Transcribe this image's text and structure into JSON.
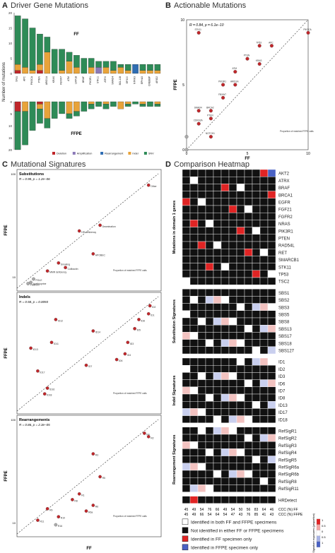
{
  "panels": {
    "A": {
      "letter": "A",
      "title": "Driver Gene Mutations"
    },
    "B": {
      "letter": "B",
      "title": "Actionable Mutations"
    },
    "C": {
      "letter": "C",
      "title": "Mutational Signatures"
    },
    "D": {
      "letter": "D",
      "title": "Comparison Heatmap"
    }
  },
  "chart_data": [
    {
      "id": "A",
      "type": "bar",
      "ylabel": "Number of mutations",
      "facets": [
        "FF",
        "FFPE"
      ],
      "categories": [
        "TP53",
        "APC",
        "PIK3CA",
        "PTEN",
        "ARID1A",
        "KRAS",
        "FBXW7",
        "ATM",
        "LRP1B",
        "BRAF",
        "PIK3R1",
        "STK11",
        "ATRX",
        "SMAD4",
        "BCL11B",
        "EP300",
        "NTRK3",
        "EPHA3",
        "CREBBP",
        "ARID2"
      ],
      "ylim_ff": [
        0,
        20
      ],
      "ylim_ffpe": [
        0,
        20
      ],
      "ff_ticks": [
        0,
        5,
        10,
        15,
        20
      ],
      "ffpe_ticks": [
        0,
        5,
        10,
        15,
        20
      ],
      "series_names": [
        "Deletion",
        "Amplification",
        "Rearrangement",
        "Indel",
        "SNV"
      ],
      "colors": {
        "Deletion": "#c0262a",
        "Amplification": "#8c7ab8",
        "Rearrangement": "#2f6db3",
        "Indel": "#e8a33a",
        "SNV": "#2e8b57"
      },
      "ff": [
        [
          1,
          0,
          0,
          2,
          16
        ],
        [
          0,
          0,
          0,
          2,
          16
        ],
        [
          0,
          0,
          0,
          1,
          14
        ],
        [
          1,
          0,
          0,
          2,
          10
        ],
        [
          0,
          0,
          0,
          7,
          5
        ],
        [
          0,
          0,
          0,
          0,
          8
        ],
        [
          0,
          0,
          0,
          1,
          7
        ],
        [
          0,
          0,
          0,
          4,
          3
        ],
        [
          0,
          0,
          0,
          2,
          4
        ],
        [
          0,
          0,
          0,
          0,
          5
        ],
        [
          0,
          0,
          0,
          2,
          3
        ],
        [
          0,
          2,
          0,
          0,
          2
        ],
        [
          0,
          0,
          0,
          2,
          2
        ],
        [
          0,
          0,
          0,
          1,
          3
        ],
        [
          0,
          0,
          0,
          2,
          1
        ],
        [
          0,
          0,
          0,
          1,
          2
        ],
        [
          0,
          0,
          3,
          0,
          0
        ],
        [
          0,
          0,
          0,
          1,
          2
        ],
        [
          0,
          0,
          0,
          1,
          2
        ],
        [
          0,
          0,
          0,
          1,
          2
        ]
      ],
      "ffpe": [
        [
          4,
          0,
          0,
          0,
          16
        ],
        [
          0,
          0,
          0,
          4,
          14
        ],
        [
          0,
          0,
          0,
          0,
          12
        ],
        [
          1,
          0,
          0,
          2,
          6
        ],
        [
          0,
          0,
          0,
          7,
          4
        ],
        [
          0,
          0,
          0,
          0,
          7
        ],
        [
          0,
          0,
          0,
          0,
          5
        ],
        [
          0,
          0,
          0,
          5,
          2
        ],
        [
          0,
          0,
          0,
          4,
          2
        ],
        [
          0,
          0,
          0,
          0,
          4
        ],
        [
          0,
          0,
          0,
          1,
          2
        ],
        [
          0,
          0,
          0,
          0,
          2
        ],
        [
          0,
          0,
          0,
          1,
          2
        ],
        [
          0,
          0,
          0,
          0,
          2
        ],
        [
          0,
          0,
          0,
          3,
          0
        ],
        [
          0,
          0,
          0,
          1,
          1
        ],
        [
          0,
          0,
          0,
          0,
          1
        ],
        [
          0,
          0,
          0,
          1,
          1
        ],
        [
          0,
          0,
          0,
          0,
          2
        ],
        [
          0,
          0,
          0,
          1,
          1
        ]
      ]
    },
    {
      "id": "B",
      "type": "scatter",
      "xlabel": "FF",
      "ylabel": "FFPE",
      "xlim": [
        0,
        10
      ],
      "ylim": [
        0,
        10
      ],
      "xticks": [
        0,
        5,
        10
      ],
      "yticks": [
        0,
        5,
        10
      ],
      "annotation": "R = 0.84, p = 6.1e−10",
      "legend_title": "Proportion of matched FFPE calls",
      "points": [
        {
          "x": 10,
          "y": 9,
          "label": "PIK3CA"
        },
        {
          "x": 7,
          "y": 8,
          "label": "APC"
        },
        {
          "x": 6,
          "y": 8,
          "label": "TP53"
        },
        {
          "x": 5,
          "y": 7,
          "label": "PTEN"
        },
        {
          "x": 6,
          "y": 6.6,
          "label": "KRAS"
        },
        {
          "x": 4,
          "y": 6,
          "label": "ATM"
        },
        {
          "x": 4,
          "y": 5,
          "label": "ARID1A"
        },
        {
          "x": 3,
          "y": 5,
          "label": "PIK3R1"
        },
        {
          "x": 3,
          "y": 4,
          "label": "FBXW7"
        },
        {
          "x": 2,
          "y": 3,
          "label": "BRCA2"
        },
        {
          "x": 2,
          "y": 2.4,
          "label": "PTEN"
        },
        {
          "x": 1,
          "y": 3,
          "label": "SMAD4"
        },
        {
          "x": 1,
          "y": 2,
          "label": "CDKN2A"
        },
        {
          "x": 2,
          "y": 1,
          "label": "NOTCH1"
        },
        {
          "x": 1,
          "y": 9,
          "label": "STK11"
        },
        {
          "x": 0,
          "y": 1,
          "label": ""
        },
        {
          "x": 0,
          "y": 0,
          "label": ""
        }
      ]
    },
    {
      "id": "C",
      "type": "scatter",
      "xlabel": "FF",
      "subpanels": [
        {
          "name": "Substitutions",
          "ylabel": "FFPE",
          "annotation": "R = 0.98, p = 1.2e−06",
          "ticks": [
            10,
            100
          ],
          "points": [
            {
              "x": 95,
              "y": 90,
              "label": "Other"
            },
            {
              "x": 60,
              "y": 55,
              "label": "Deamination"
            },
            {
              "x": 45,
              "y": 50,
              "label": "HR deficiency"
            },
            {
              "x": 55,
              "y": 30,
              "label": "APOBEC"
            },
            {
              "x": 30,
              "y": 22,
              "label": "Smoking"
            },
            {
              "x": 35,
              "y": 18,
              "label": "Colibactin"
            },
            {
              "x": 22,
              "y": 15,
              "label": "MMR deficiency"
            },
            {
              "x": 12,
              "y": 8,
              "label": "POLE"
            },
            {
              "x": 10,
              "y": 5,
              "label": "Azathioprine"
            },
            {
              "x": 8,
              "y": 4,
              "label": "Platinum"
            }
          ]
        },
        {
          "name": "Indels",
          "ylabel": "FFPE",
          "annotation": "R = 0.58, p = 0.0093",
          "ticks": [],
          "points": [
            {
              "x": 96,
              "y": 92,
              "label": "ID2"
            },
            {
              "x": 95,
              "y": 85,
              "label": "ID1"
            },
            {
              "x": 88,
              "y": 80,
              "label": "ID8"
            },
            {
              "x": 85,
              "y": 72,
              "label": "ID5"
            },
            {
              "x": 80,
              "y": 60,
              "label": "ID3"
            },
            {
              "x": 78,
              "y": 50,
              "label": "ID4"
            },
            {
              "x": 72,
              "y": 45,
              "label": "ID6"
            },
            {
              "x": 50,
              "y": 40,
              "label": "ID7"
            },
            {
              "x": 55,
              "y": 70,
              "label": "ID14"
            },
            {
              "x": 28,
              "y": 80,
              "label": "ID12"
            },
            {
              "x": 25,
              "y": 60,
              "label": "ID11"
            },
            {
              "x": 10,
              "y": 55,
              "label": "ID13"
            },
            {
              "x": 15,
              "y": 35,
              "label": "ID17"
            },
            {
              "x": 20,
              "y": 15,
              "label": "ID18"
            },
            {
              "x": 22,
              "y": 20,
              "label": "ID16"
            }
          ]
        },
        {
          "name": "Rearrangements",
          "ylabel": "FFPE",
          "annotation": "R = 0.86, p = 2.3e−05",
          "ticks": [
            10,
            100
          ],
          "points": [
            {
              "x": 92,
              "y": 88,
              "label": "R4"
            },
            {
              "x": 95,
              "y": 85,
              "label": "R2"
            },
            {
              "x": 55,
              "y": 70,
              "label": "R3"
            },
            {
              "x": 60,
              "y": 50,
              "label": "R5"
            },
            {
              "x": 45,
              "y": 35,
              "label": "R1"
            },
            {
              "x": 55,
              "y": 25,
              "label": "R6"
            },
            {
              "x": 40,
              "y": 30,
              "label": "R8"
            },
            {
              "x": 50,
              "y": 20,
              "label": "R6a"
            },
            {
              "x": 30,
              "y": 15,
              "label": "R10"
            },
            {
              "x": 22,
              "y": 22,
              "label": "R9"
            },
            {
              "x": 15,
              "y": 12,
              "label": "R11"
            },
            {
              "x": 28,
              "y": 8,
              "label": "R16"
            }
          ]
        }
      ],
      "legend_title": "Proportion of matched FFPE calls"
    },
    {
      "id": "D",
      "type": "heatmap",
      "row_groups": [
        {
          "title": "Mutations in domain 1 genes",
          "rows": [
            "AKT2",
            "ATRX",
            "BRAF",
            "BRCA1",
            "EGFR",
            "FGF21",
            "FGFR2",
            "NRAS",
            "PIK3R1",
            "PTEN",
            "RAD54L",
            "RET",
            "SMARCB1",
            "STK11",
            "TP53",
            "TSC2"
          ]
        },
        {
          "title": "Substitution Signatures",
          "rows": [
            "SBS1",
            "SBS2",
            "SBS3",
            "SBS5",
            "SBS8",
            "SBS13",
            "SBS17",
            "SBS18",
            "SBS127"
          ]
        },
        {
          "title": "Indel Signatures",
          "rows": [
            "ID1",
            "ID2",
            "ID3",
            "ID6",
            "ID7",
            "ID8",
            "ID13",
            "ID17",
            "ID18"
          ]
        },
        {
          "title": "Rearrangement Signatures",
          "rows": [
            "RefSigR1",
            "RefSigR2",
            "RefSigR3",
            "RefSigR4",
            "RefSigR5",
            "RefSigR6a",
            "RefSigR6b",
            "RefSigR8",
            "RefSigR11"
          ]
        },
        {
          "title": "",
          "rows": [
            "HRDetect"
          ]
        }
      ],
      "columns": 12,
      "ccc_ff": [
        "45",
        "49",
        "54",
        "76",
        "66",
        "49",
        "54",
        "50",
        "56",
        "83",
        "64",
        "46"
      ],
      "ccc_ffpe": [
        "45",
        "49",
        "66",
        "54",
        "64",
        "54",
        "47",
        "43",
        "76",
        "85",
        "41",
        "43"
      ],
      "ccc_ff_label": "CCC (%) FF",
      "ccc_ffpe_label": "CCC (%) FFPE",
      "legend": [
        {
          "key": "both",
          "label": "Identified in both FF and FFPE specimens",
          "color": "#ffffff"
        },
        {
          "key": "neither",
          "label": "Not identified in either FF or FFPE specimens",
          "color": "#111111"
        },
        {
          "key": "ff_only",
          "label": "Identified in FF specimen only",
          "color": "#e02424"
        },
        {
          "key": "ffpe_only",
          "label": "Identified in FFPE specimen only",
          "color": "#4a62c4"
        }
      ],
      "scale_title": "Signature exposures (proportion)",
      "scale_ticks": [
        "1",
        "0.5",
        "0",
        "0.5",
        "1"
      ]
    }
  ],
  "legend_A": [
    {
      "label": "Deletion",
      "color": "#c0262a"
    },
    {
      "label": "Amplification",
      "color": "#8c7ab8"
    },
    {
      "label": "Rearrangement",
      "color": "#2f6db3"
    },
    {
      "label": "Indel",
      "color": "#e8a33a"
    },
    {
      "label": "SNV",
      "color": "#2e8b57"
    }
  ]
}
